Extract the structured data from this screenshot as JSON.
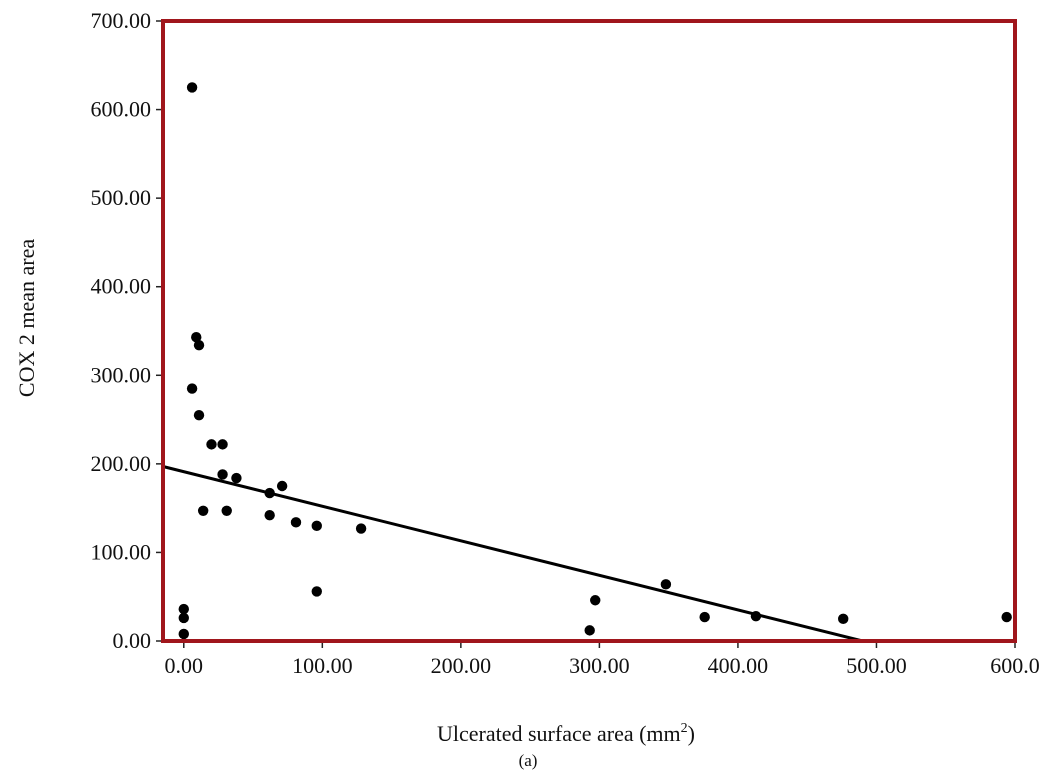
{
  "chart_data": {
    "type": "scatter",
    "xlabel": "Ulcerated surface area (mm",
    "xlabel_sup": "2",
    "xlabel_close": ")",
    "ylabel": "COX 2 mean area",
    "caption": "(a)",
    "xlim": [
      -15,
      600
    ],
    "ylim": [
      0,
      700
    ],
    "x_ticks": [
      0,
      100,
      200,
      300,
      400,
      500,
      600
    ],
    "x_tick_labels": [
      "0.00",
      "100.00",
      "200.00",
      "300.00",
      "400.00",
      "500.00",
      "600.0"
    ],
    "y_ticks": [
      0,
      100,
      200,
      300,
      400,
      500,
      600,
      700
    ],
    "y_tick_labels": [
      "0.00",
      "100.00",
      "200.00",
      "300.00",
      "400.00",
      "500.00",
      "600.00",
      "700.00"
    ],
    "grid": false,
    "frame_color": "#a0161c",
    "point_color": "#000000",
    "points": [
      {
        "x": 6,
        "y": 625
      },
      {
        "x": 9,
        "y": 343
      },
      {
        "x": 11,
        "y": 334
      },
      {
        "x": 6,
        "y": 285
      },
      {
        "x": 11,
        "y": 255
      },
      {
        "x": 20,
        "y": 222
      },
      {
        "x": 28,
        "y": 222
      },
      {
        "x": 28,
        "y": 188
      },
      {
        "x": 38,
        "y": 184
      },
      {
        "x": 62,
        "y": 167
      },
      {
        "x": 71,
        "y": 175
      },
      {
        "x": 14,
        "y": 147
      },
      {
        "x": 31,
        "y": 147
      },
      {
        "x": 62,
        "y": 142
      },
      {
        "x": 81,
        "y": 134
      },
      {
        "x": 96,
        "y": 130
      },
      {
        "x": 128,
        "y": 127
      },
      {
        "x": 96,
        "y": 56
      },
      {
        "x": 0,
        "y": 36
      },
      {
        "x": 0,
        "y": 26
      },
      {
        "x": 0,
        "y": 8
      },
      {
        "x": 293,
        "y": 12
      },
      {
        "x": 297,
        "y": 46
      },
      {
        "x": 348,
        "y": 64
      },
      {
        "x": 376,
        "y": 27
      },
      {
        "x": 413,
        "y": 28
      },
      {
        "x": 476,
        "y": 25
      },
      {
        "x": 594,
        "y": 27
      }
    ],
    "fit_line": {
      "x": [
        -15,
        490
      ],
      "y": [
        197,
        0
      ]
    }
  }
}
